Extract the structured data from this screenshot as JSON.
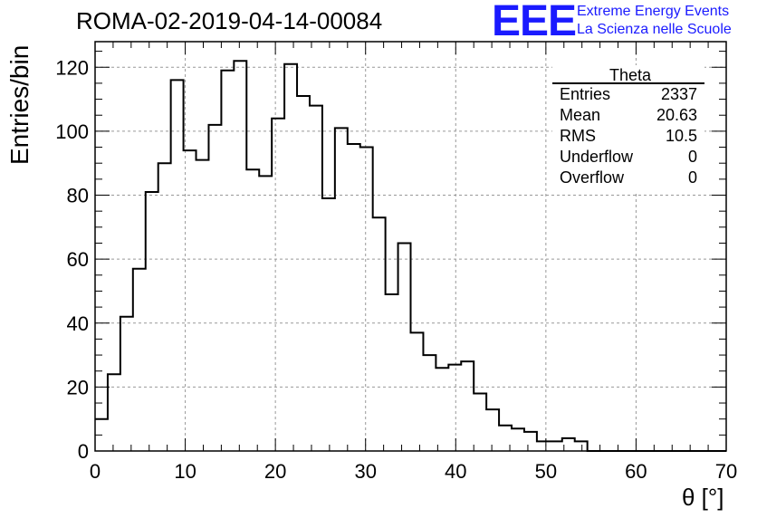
{
  "header": {
    "title": "ROMA-02-2019-04-14-00084",
    "logo_text": "EEE",
    "logo_line1": "Extreme Energy Events",
    "logo_line2": "La Scienza nelle Scuole",
    "accent_color": "#1a1aff"
  },
  "stats_box": {
    "name": "Theta",
    "rows": [
      {
        "label": "Entries",
        "value": "2337"
      },
      {
        "label": "Mean",
        "value": "20.63"
      },
      {
        "label": "RMS",
        "value": "10.5"
      },
      {
        "label": "Underflow",
        "value": "0"
      },
      {
        "label": "Overflow",
        "value": "0"
      }
    ]
  },
  "chart_data": {
    "type": "bar",
    "histogram": true,
    "title": "ROMA-02-2019-04-14-00084",
    "xlabel": "θ [°]",
    "ylabel": "Entries/bin",
    "xlim": [
      0,
      70
    ],
    "ylim": [
      0,
      128
    ],
    "bin_width": 1.4,
    "xticks": [
      0,
      10,
      20,
      30,
      40,
      50,
      60,
      70
    ],
    "yticks": [
      0,
      20,
      40,
      60,
      80,
      100,
      120
    ],
    "grid": true,
    "values": [
      10,
      24,
      42,
      57,
      81,
      90,
      116,
      94,
      91,
      102,
      119,
      122,
      88,
      86,
      104,
      121,
      111,
      108,
      79,
      101,
      96,
      95,
      73,
      49,
      65,
      37,
      30,
      26,
      27,
      28,
      18,
      13,
      8,
      7,
      6,
      3,
      3,
      4,
      3,
      0,
      0,
      0,
      0,
      0,
      0,
      0,
      0,
      0,
      0,
      0
    ]
  }
}
